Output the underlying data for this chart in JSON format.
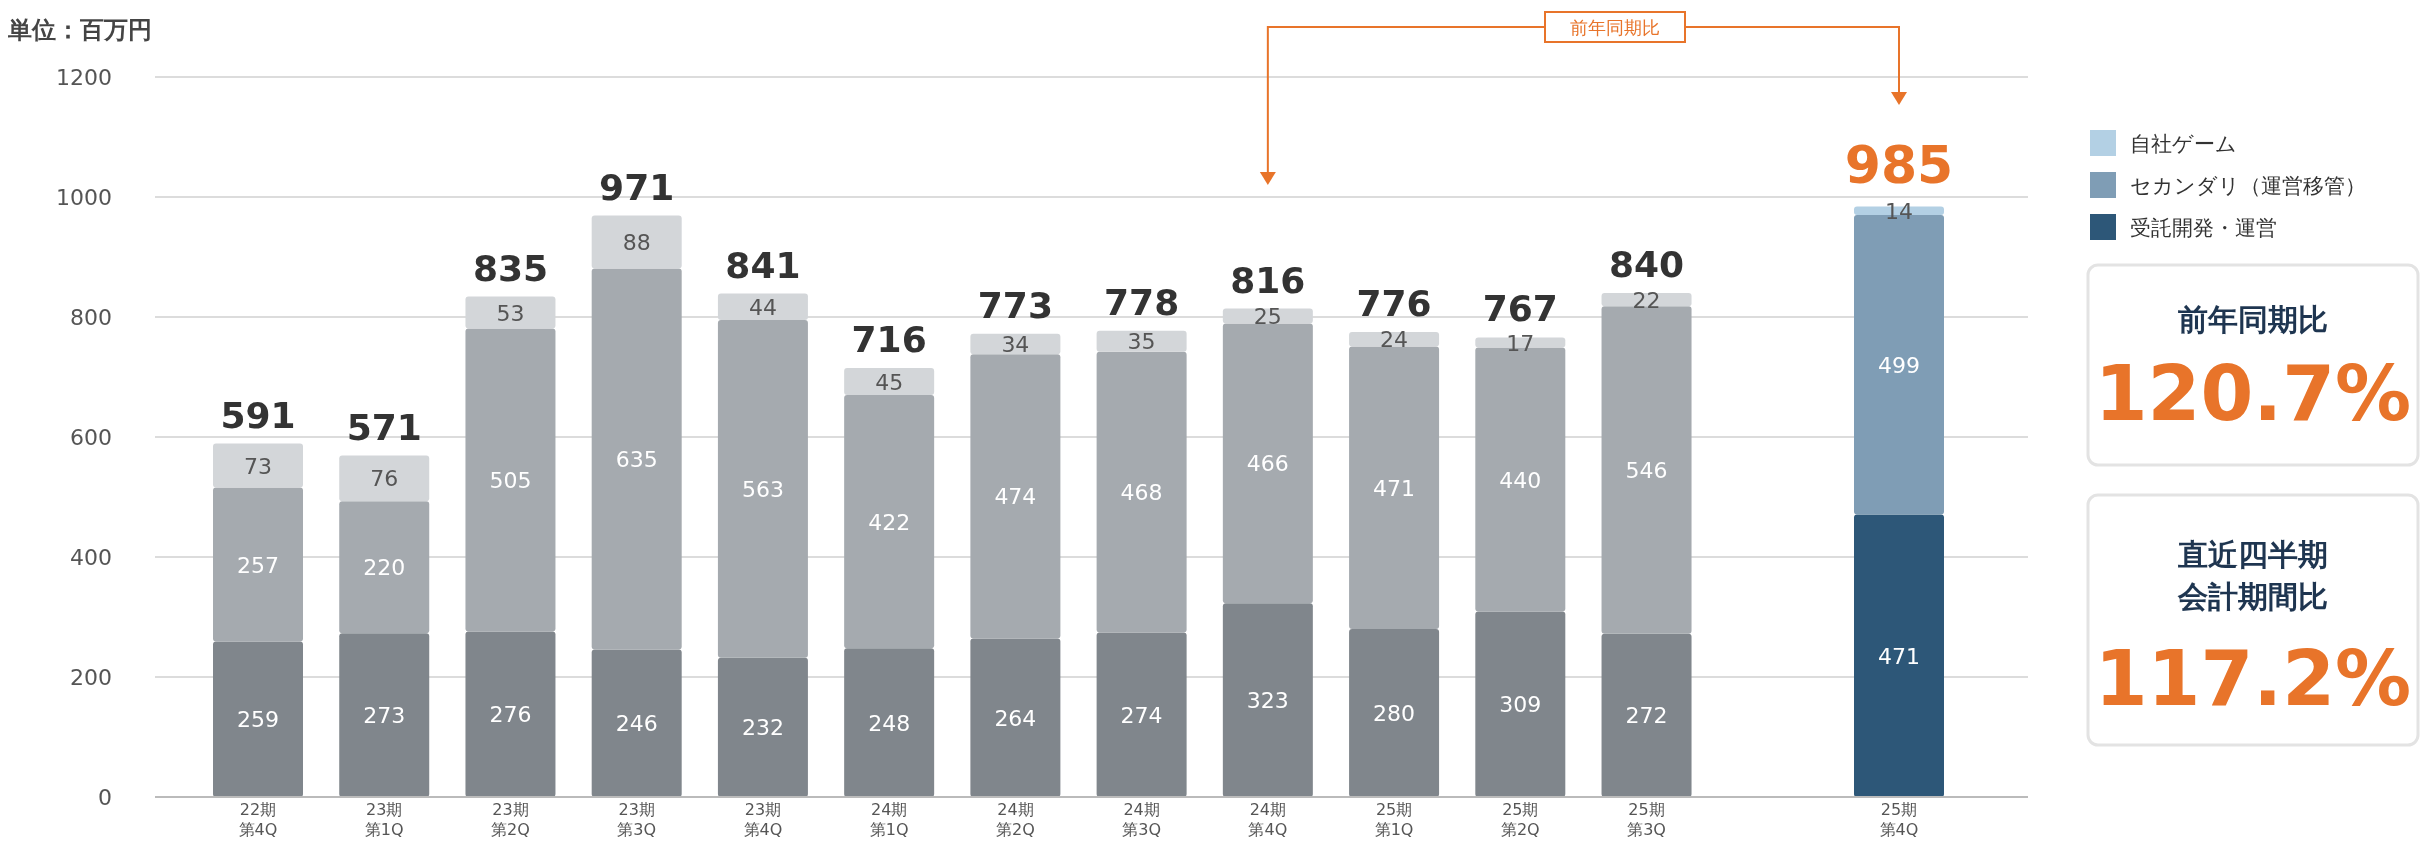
{
  "chart_data": {
    "type": "bar",
    "stacked": true,
    "categories": [
      "22期第4Q",
      "23期第1Q",
      "23期第2Q",
      "23期第3Q",
      "23期第4Q",
      "24期第1Q",
      "24期第2Q",
      "24期第3Q",
      "24期第4Q",
      "25期第1Q",
      "25期第2Q",
      "25期第3Q",
      null,
      "25期第4Q"
    ],
    "series": [
      {
        "name": "受託開発・運営",
        "color": "#2d5778",
        "colors": [
          "#80868c",
          "#80868c",
          "#80868c",
          "#80868c",
          "#80868c",
          "#80868c",
          "#80868c",
          "#80868c",
          "#80868c",
          "#80868c",
          "#80868c",
          "#80868c",
          null,
          "#2d5778"
        ],
        "values": [
          259,
          273,
          276,
          246,
          232,
          248,
          264,
          274,
          323,
          280,
          309,
          272,
          null,
          471
        ]
      },
      {
        "name": "セカンダリ（運営移管）",
        "color": "#7f9db5",
        "colors": [
          "#a5aaaf",
          "#a5aaaf",
          "#a5aaaf",
          "#a5aaaf",
          "#a5aaaf",
          "#a5aaaf",
          "#a5aaaf",
          "#a5aaaf",
          "#a5aaaf",
          "#a5aaaf",
          "#a5aaaf",
          "#a5aaaf",
          null,
          "#7f9db5"
        ],
        "values": [
          257,
          220,
          505,
          635,
          563,
          422,
          474,
          468,
          466,
          471,
          440,
          546,
          null,
          499
        ]
      },
      {
        "name": "自社ゲーム",
        "color": "#b3d0e4",
        "colors": [
          "#d3d6d9",
          "#d3d6d9",
          "#d3d6d9",
          "#d3d6d9",
          "#d3d6d9",
          "#d3d6d9",
          "#d3d6d9",
          "#d3d6d9",
          "#d3d6d9",
          "#d3d6d9",
          "#d3d6d9",
          "#d3d6d9",
          null,
          "#b3d0e4"
        ],
        "values": [
          73,
          76,
          53,
          88,
          44,
          45,
          34,
          35,
          25,
          24,
          17,
          22,
          null,
          14
        ]
      }
    ],
    "totals": [
      "591",
      "571",
      "835",
      "971",
      "841",
      "716",
      "773",
      "778",
      "816",
      "776",
      "767",
      "840",
      null,
      "985"
    ],
    "data_labels": true,
    "ylim": [
      0,
      1200
    ],
    "yticks": [
      0,
      200,
      400,
      600,
      800,
      1000,
      1200
    ],
    "grid": "y",
    "legend": "top right",
    "annotations": [
      "単位：百万円",
      "前年同期比",
      "前年同期比",
      "120.7%",
      "直近四半期会計期間比",
      "117.2%"
    ]
  }
}
